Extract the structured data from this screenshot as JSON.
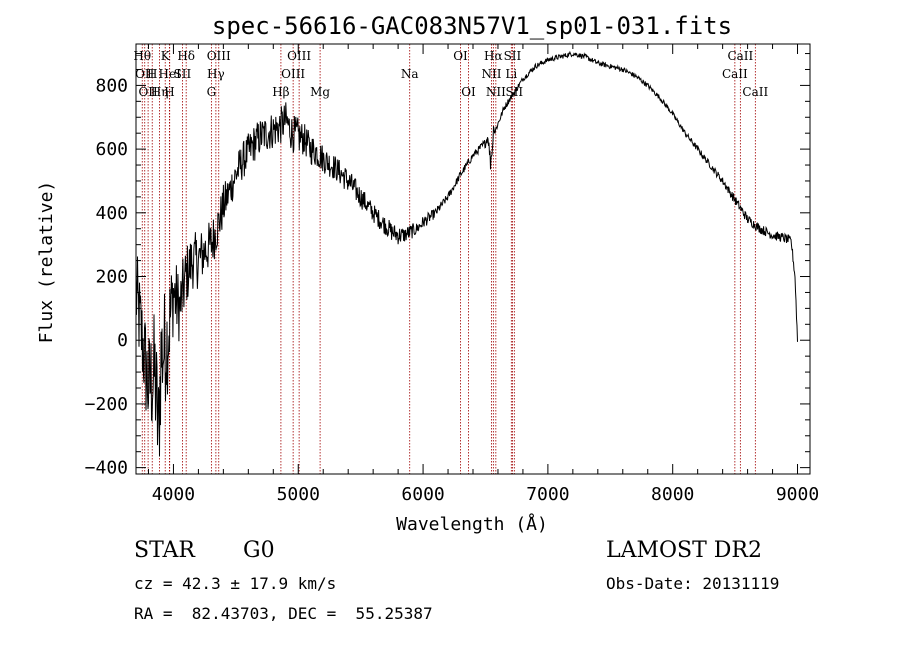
{
  "chart_data": {
    "type": "line",
    "title": "spec-56616-GAC083N57V1_sp01-031.fits",
    "xlabel": "Wavelength (Å)",
    "ylabel": "Flux (relative)",
    "xlim": [
      3700,
      9100
    ],
    "ylim": [
      -420,
      930
    ],
    "x_ticks": [
      4000,
      5000,
      6000,
      7000,
      8000,
      9000
    ],
    "x_tick_labels": [
      "4000",
      "5000",
      "6000",
      "7000",
      "8000",
      "9000"
    ],
    "y_ticks": [
      -400,
      -200,
      0,
      200,
      400,
      600,
      800
    ],
    "y_tick_labels": [
      "−400",
      "−200",
      "0",
      "200",
      "400",
      "600",
      "800"
    ],
    "grid": false,
    "series": [
      {
        "x": [
          3700,
          3750,
          3800,
          3850,
          3880,
          3900,
          3950,
          4000,
          4050,
          4100,
          4150,
          4200,
          4250,
          4300,
          4350,
          4400,
          4450,
          4500,
          4550,
          4600,
          4650,
          4700,
          4750,
          4800,
          4850,
          4900,
          4950,
          5000,
          5050,
          5100,
          5150,
          5200,
          5300,
          5400,
          5500,
          5600,
          5650,
          5700,
          5750,
          5800,
          5850,
          5900,
          5950,
          6000,
          6100,
          6200,
          6300,
          6400,
          6450,
          6500,
          6520,
          6540,
          6560,
          6565,
          6570,
          6600,
          6650,
          6700,
          6750,
          6800,
          6850,
          6900,
          6950,
          7000,
          7050,
          7100,
          7150,
          7200,
          7300,
          7400,
          7500,
          7600,
          7700,
          7800,
          7900,
          8000,
          8100,
          8200,
          8300,
          8400,
          8500,
          8550,
          8600,
          8700,
          8800,
          8900,
          8950,
          8980,
          9000
        ],
        "y": [
          150,
          0,
          -150,
          -100,
          -300,
          -50,
          0,
          150,
          100,
          200,
          250,
          250,
          280,
          300,
          350,
          420,
          470,
          520,
          560,
          590,
          620,
          640,
          650,
          660,
          670,
          690,
          650,
          640,
          630,
          600,
          590,
          570,
          540,
          500,
          450,
          400,
          380,
          360,
          340,
          330,
          330,
          340,
          350,
          370,
          400,
          450,
          520,
          580,
          600,
          620,
          640,
          560,
          620,
          700,
          650,
          680,
          730,
          760,
          790,
          820,
          840,
          860,
          870,
          880,
          885,
          890,
          895,
          900,
          890,
          870,
          860,
          850,
          830,
          800,
          760,
          710,
          650,
          600,
          550,
          500,
          440,
          410,
          380,
          350,
          330,
          320,
          310,
          200,
          0
        ],
        "noise": [
          150,
          150,
          180,
          200,
          220,
          200,
          180,
          130,
          110,
          100,
          90,
          90,
          80,
          80,
          70,
          70,
          60,
          60,
          60,
          60,
          60,
          60,
          60,
          60,
          60,
          60,
          60,
          60,
          50,
          50,
          50,
          45,
          40,
          40,
          35,
          30,
          30,
          30,
          30,
          30,
          25,
          25,
          20,
          20,
          15,
          12,
          12,
          12,
          12,
          15,
          15,
          30,
          15,
          12,
          12,
          10,
          10,
          10,
          10,
          8,
          8,
          8,
          8,
          8,
          8,
          8,
          8,
          8,
          8,
          8,
          8,
          8,
          8,
          8,
          8,
          8,
          8,
          10,
          10,
          12,
          15,
          15,
          15,
          15,
          15,
          15,
          15,
          15,
          15
        ]
      }
    ],
    "lines": [
      {
        "x": 3750,
        "label": "Hθ",
        "row": 1
      },
      {
        "x": 3770,
        "label": "OII",
        "row": 2
      },
      {
        "x": 3797,
        "label": "OII",
        "row": 3
      },
      {
        "x": 3830,
        "label": "H",
        "row": 2
      },
      {
        "x": 3889,
        "label": "Hη",
        "row": 3
      },
      {
        "x": 3934,
        "label": "K",
        "row": 1
      },
      {
        "x": 3968,
        "label": "H",
        "row": 3
      },
      {
        "x": 3970,
        "label": "HeI",
        "row": 2
      },
      {
        "x": 4072,
        "label": "SII",
        "row": 2
      },
      {
        "x": 4102,
        "label": "Hδ",
        "row": 1
      },
      {
        "x": 4304,
        "label": "G",
        "row": 3
      },
      {
        "x": 4340,
        "label": "Hγ",
        "row": 2
      },
      {
        "x": 4363,
        "label": "OIII",
        "row": 1
      },
      {
        "x": 4861,
        "label": "Hβ",
        "row": 3
      },
      {
        "x": 4959,
        "label": "OIII",
        "row": 2
      },
      {
        "x": 5007,
        "label": "OIII",
        "row": 1
      },
      {
        "x": 5175,
        "label": "Mg",
        "row": 3
      },
      {
        "x": 5893,
        "label": "Na",
        "row": 2
      },
      {
        "x": 6300,
        "label": "OI",
        "row": 1
      },
      {
        "x": 6364,
        "label": "OI",
        "row": 3
      },
      {
        "x": 6548,
        "label": "NII",
        "row": 2
      },
      {
        "x": 6563,
        "label": "Hα",
        "row": 1
      },
      {
        "x": 6583,
        "label": "NII",
        "row": 3
      },
      {
        "x": 6707,
        "label": "Li",
        "row": 2
      },
      {
        "x": 6716,
        "label": "SII",
        "row": 1
      },
      {
        "x": 6731,
        "label": "SII",
        "row": 3
      },
      {
        "x": 8498,
        "label": "CaII",
        "row": 2
      },
      {
        "x": 8542,
        "label": "CaII",
        "row": 1
      },
      {
        "x": 8662,
        "label": "CaII",
        "row": 3
      }
    ]
  },
  "info": {
    "class_label": "STAR",
    "subclass": "G0",
    "survey": "LAMOST DR2",
    "redshift": "cz = 42.3 ± 17.9 km/s",
    "obs_date": "Obs-Date: 20131119",
    "coords": "RA =  82.43703, DEC =  55.25387"
  }
}
